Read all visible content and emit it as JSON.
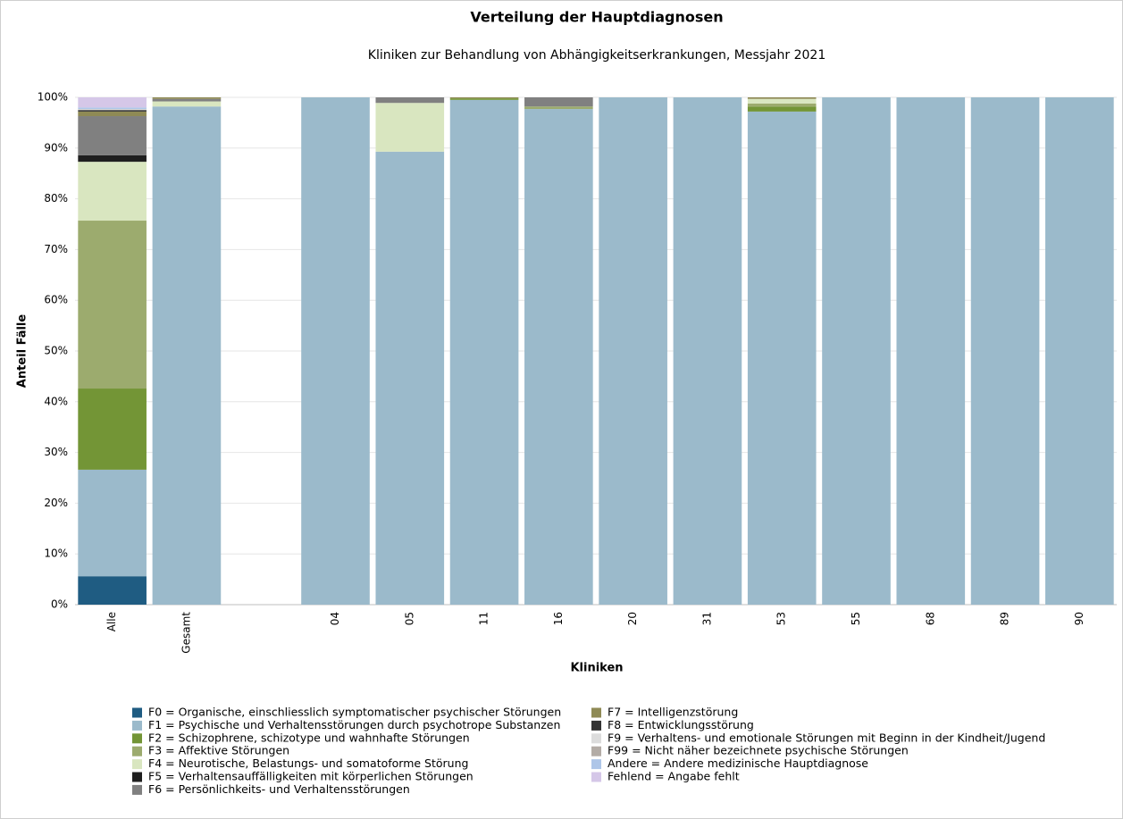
{
  "chart_data": {
    "type": "stacked_bar",
    "title": "Verteilung der Hauptdiagnosen",
    "subtitle": "Kliniken zur Behandlung von Abhängigkeitserkrankungen, Messjahr 2021",
    "x_label": "Kliniken",
    "y_label": "Anteil Fälle",
    "categories": [
      "Alle",
      "Gesamt",
      null,
      "04",
      "05",
      "11",
      "16",
      "20",
      "31",
      "53",
      "55",
      "68",
      "89",
      "90"
    ],
    "ylim": [
      0,
      100
    ],
    "yticks": [
      {
        "value": 0,
        "label": "0%"
      },
      {
        "value": 10,
        "label": "10%"
      },
      {
        "value": 20,
        "label": "20%"
      },
      {
        "value": 30,
        "label": "30%"
      },
      {
        "value": 40,
        "label": "40%"
      },
      {
        "value": 50,
        "label": "50%"
      },
      {
        "value": 60,
        "label": "60%"
      },
      {
        "value": 70,
        "label": "70%"
      },
      {
        "value": 80,
        "label": "80%"
      },
      {
        "value": 90,
        "label": "90%"
      },
      {
        "value": 100,
        "label": "100%"
      }
    ],
    "grid": true,
    "series": [
      {
        "name": "F0 = Organische, einschliesslich symptomatischer psychischer Störungen",
        "color": "#1f5c82",
        "values": [
          5.6,
          0,
          null,
          0,
          0,
          0,
          0,
          0,
          0,
          0,
          0,
          0,
          0,
          0
        ]
      },
      {
        "name": "F1 = Psychische und Verhaltensstörungen durch psychotrope Substanzen",
        "color": "#9bbacb",
        "values": [
          21.0,
          98.2,
          null,
          100,
          89.3,
          99.5,
          97.7,
          100,
          100,
          97.2,
          100,
          100,
          100,
          100
        ]
      },
      {
        "name": "F2 = Schizophrene, schizotype und wahnhafte Störungen",
        "color": "#739536",
        "values": [
          16.0,
          0,
          null,
          0,
          0,
          0.3,
          0,
          0,
          0,
          1.0,
          0,
          0,
          0,
          0
        ]
      },
      {
        "name": "F3 = Affektive Störungen",
        "color": "#9cab6e",
        "values": [
          33.1,
          0,
          null,
          0,
          0,
          0,
          0.5,
          0,
          0,
          0.6,
          0,
          0,
          0,
          0
        ]
      },
      {
        "name": "F4 = Neurotische, Belastungs- und somatoforme Störung",
        "color": "#d9e6c0",
        "values": [
          11.6,
          1.0,
          null,
          0,
          9.6,
          0,
          0,
          0,
          0,
          0.9,
          0,
          0,
          0,
          0
        ]
      },
      {
        "name": "F5 = Verhaltensauffälligkeiten mit körperlichen Störungen",
        "color": "#1f1f1f",
        "values": [
          1.3,
          0,
          null,
          0,
          0,
          0,
          0,
          0,
          0,
          0,
          0,
          0,
          0,
          0
        ]
      },
      {
        "name": "F6 = Persönlichkeits- und Verhaltensstörungen",
        "color": "#808080",
        "values": [
          7.7,
          0.5,
          null,
          0,
          1.1,
          0,
          1.8,
          0,
          0,
          0,
          0,
          0,
          0,
          0
        ]
      },
      {
        "name": "F7 = Intelligenzstörung",
        "color": "#8f8a55",
        "values": [
          0.9,
          0.3,
          null,
          0,
          0,
          0.2,
          0,
          0,
          0,
          0.3,
          0,
          0,
          0,
          0
        ]
      },
      {
        "name": "F8 = Entwicklungsstörung",
        "color": "#333333",
        "values": [
          0.3,
          0,
          null,
          0,
          0,
          0,
          0,
          0,
          0,
          0,
          0,
          0,
          0,
          0
        ]
      },
      {
        "name": "F9 = Verhaltens- und emotionale Störungen mit Beginn in der Kindheit/Jugend",
        "color": "#dcdcdc",
        "values": [
          0.2,
          0,
          null,
          0,
          0,
          0,
          0,
          0,
          0,
          0,
          0,
          0,
          0,
          0
        ]
      },
      {
        "name": "F99 = Nicht näher bezeichnete psychische Störungen",
        "color": "#b3aca6",
        "values": [
          0,
          0,
          null,
          0,
          0,
          0,
          0,
          0,
          0,
          0,
          0,
          0,
          0,
          0
        ]
      },
      {
        "name": "Andere = Andere medizinische Hauptdiagnose",
        "color": "#aec6e8",
        "values": [
          0.3,
          0,
          null,
          0,
          0,
          0,
          0,
          0,
          0,
          0,
          0,
          0,
          0,
          0
        ]
      },
      {
        "name": "Fehlend = Angabe fehlt",
        "color": "#d5c7e8",
        "values": [
          2.0,
          0,
          null,
          0,
          0,
          0,
          0,
          0,
          0,
          0,
          0,
          0,
          0,
          0
        ]
      }
    ]
  }
}
